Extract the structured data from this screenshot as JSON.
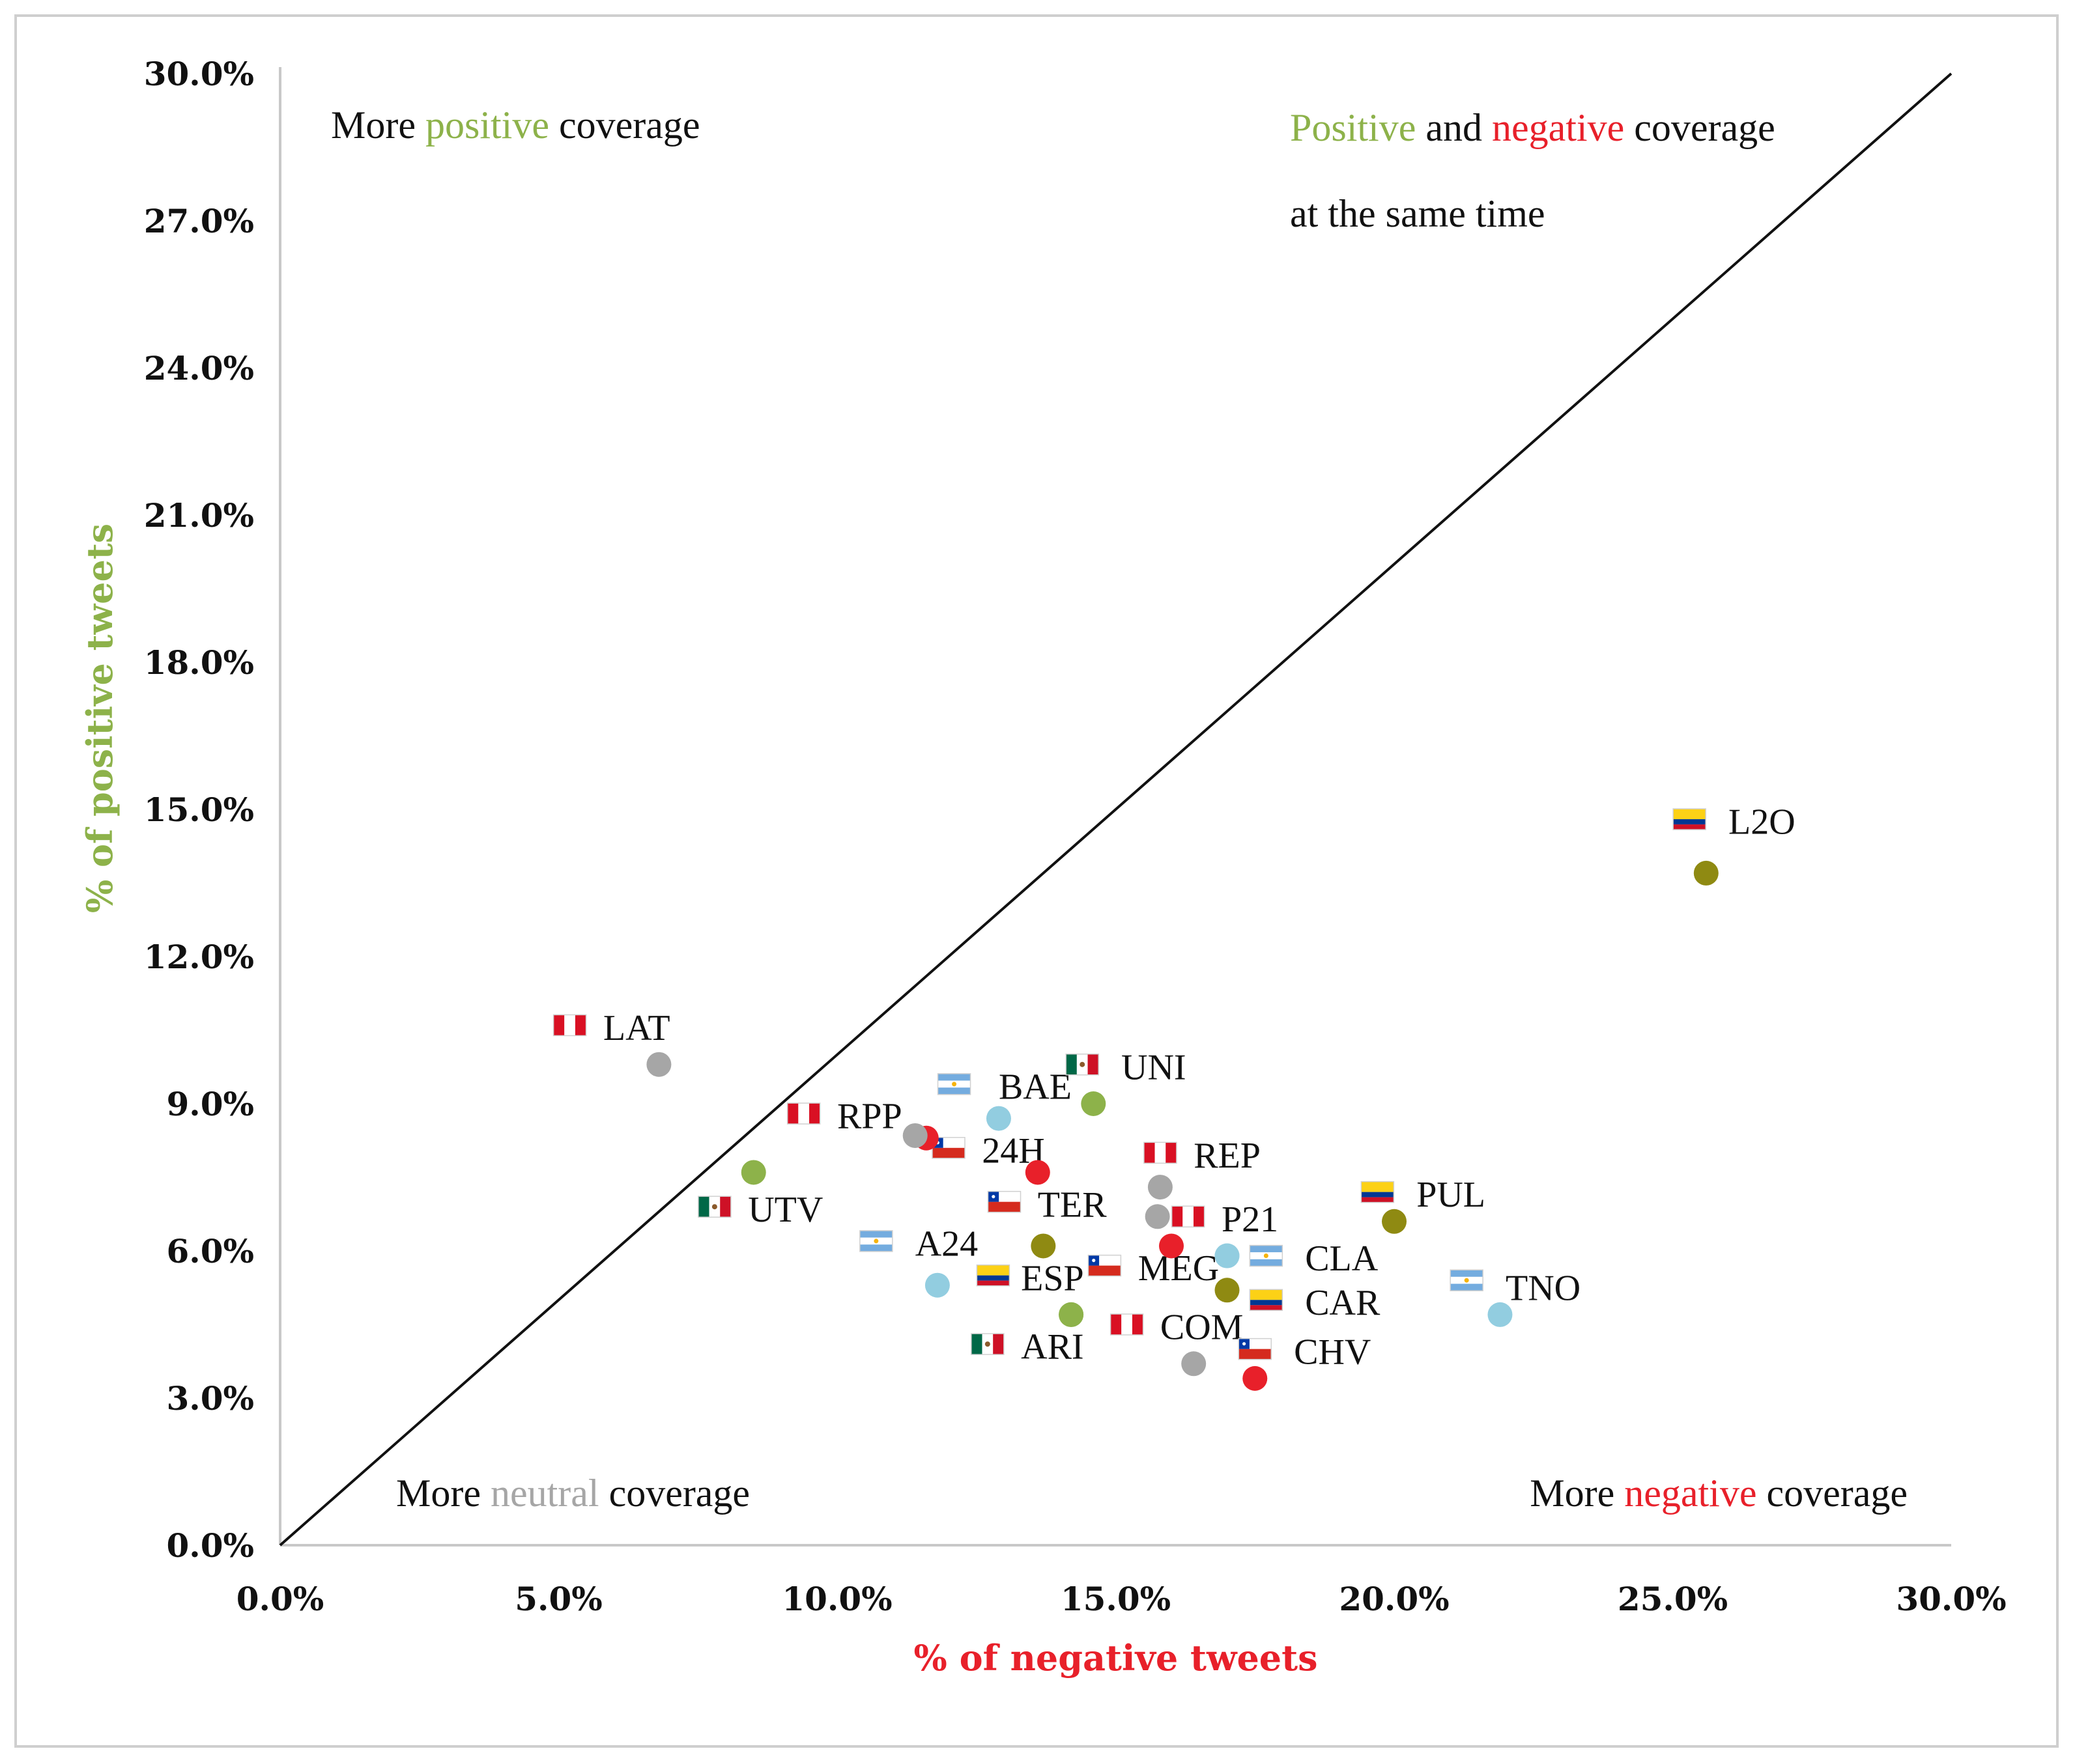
{
  "colors": {
    "positive": "#8db24a",
    "negative": "#e8202a",
    "neutral": "#a6a6a6",
    "both": "#8f8a12",
    "lightblue": "#92cde0"
  },
  "chart_data": {
    "type": "scatter",
    "xlabel": "% of negative tweets",
    "ylabel": "% of positive tweets",
    "xlim": [
      0,
      30
    ],
    "ylim": [
      0,
      30
    ],
    "x_ticks": [
      "0.0%",
      "5.0%",
      "10.0%",
      "15.0%",
      "20.0%",
      "25.0%",
      "30.0%"
    ],
    "y_ticks": [
      "0.0%",
      "3.0%",
      "6.0%",
      "9.0%",
      "12.0%",
      "15.0%",
      "18.0%",
      "21.0%",
      "24.0%",
      "27.0%",
      "30.0%"
    ],
    "reference_line": {
      "from": [
        0,
        0
      ],
      "to": [
        30,
        30
      ]
    },
    "annotations": {
      "top_left": {
        "pre": "More ",
        "word": "positive",
        "post": " coverage",
        "color": "positive"
      },
      "top_right_line1": {
        "word1": "Positive",
        "mid": " and ",
        "word2": "negative",
        "post": " coverage"
      },
      "top_right_line2": "at the same time",
      "bottom_left": {
        "pre": "More ",
        "word": "neutral",
        "post": " coverage",
        "color": "neutral"
      },
      "bottom_right": {
        "pre": "More ",
        "word": "negative",
        "post": " coverage",
        "color": "negative"
      }
    },
    "points": [
      {
        "label": "LAT",
        "x": 6.8,
        "y": 9.8,
        "color": "neutral",
        "flag": "peru"
      },
      {
        "label": "UTV",
        "x": 8.5,
        "y": 7.6,
        "color": "positive",
        "flag": "mexico"
      },
      {
        "label": "RPP",
        "x": 11.6,
        "y": 8.3,
        "color": "negative",
        "flag": "peru"
      },
      {
        "label": "RPP-2",
        "x": 11.4,
        "y": 8.35,
        "color": "neutral",
        "flag": "none"
      },
      {
        "label": "BAE",
        "x": 12.9,
        "y": 8.7,
        "color": "lightblue",
        "flag": "argentina"
      },
      {
        "label": "UNI",
        "x": 14.6,
        "y": 9.0,
        "color": "positive",
        "flag": "mexico"
      },
      {
        "label": "24H",
        "x": 13.6,
        "y": 7.6,
        "color": "negative",
        "flag": "chile"
      },
      {
        "label": "TER",
        "x": 13.7,
        "y": 6.1,
        "color": "both",
        "flag": "chile"
      },
      {
        "label": "A24",
        "x": 11.8,
        "y": 5.3,
        "color": "lightblue",
        "flag": "argentina"
      },
      {
        "label": "ESP",
        "x": 14.2,
        "y": 4.7,
        "color": "positive",
        "flag": "colombia"
      },
      {
        "label": "ARI",
        "x": 14.2,
        "y": 4.7,
        "color": "positive",
        "flag": "mexico"
      },
      {
        "label": "REP",
        "x": 15.8,
        "y": 7.3,
        "color": "neutral",
        "flag": "peru"
      },
      {
        "label": "REP-2",
        "x": 15.75,
        "y": 6.7,
        "color": "neutral",
        "flag": "none"
      },
      {
        "label": "P21",
        "x": 16.0,
        "y": 6.1,
        "color": "negative",
        "flag": "peru"
      },
      {
        "label": "MEG",
        "x": 17.0,
        "y": 5.9,
        "color": "lightblue",
        "flag": "chile"
      },
      {
        "label": "CLA",
        "x": 17.0,
        "y": 5.9,
        "color": "lightblue",
        "flag": "argentina"
      },
      {
        "label": "CAR",
        "x": 17.0,
        "y": 5.2,
        "color": "both",
        "flag": "colombia"
      },
      {
        "label": "COM",
        "x": 16.4,
        "y": 3.7,
        "color": "neutral",
        "flag": "peru"
      },
      {
        "label": "CHV",
        "x": 17.5,
        "y": 3.4,
        "color": "negative",
        "flag": "chile"
      },
      {
        "label": "PUL",
        "x": 20.0,
        "y": 6.6,
        "color": "both",
        "flag": "colombia"
      },
      {
        "label": "TNO",
        "x": 21.9,
        "y": 4.7,
        "color": "lightblue",
        "flag": "argentina"
      },
      {
        "label": "L2O",
        "x": 25.6,
        "y": 13.7,
        "color": "both",
        "flag": "colombia"
      }
    ],
    "label_placements": [
      {
        "label": "LAT",
        "lx": 5.8,
        "ly": 10.3,
        "fx": 5.2,
        "fy": 10.6
      },
      {
        "label": "UTV",
        "lx": 8.4,
        "ly": 6.6,
        "fx": 7.8,
        "fy": 6.9
      },
      {
        "label": "RPP",
        "lx": 10.0,
        "ly": 8.5,
        "fx": 9.4,
        "fy": 8.8
      },
      {
        "label": "BAE",
        "lx": 12.9,
        "ly": 9.1,
        "fx": 12.1,
        "fy": 9.4
      },
      {
        "label": "UNI",
        "lx": 15.1,
        "ly": 9.5,
        "fx": 14.4,
        "fy": 9.8
      },
      {
        "label": "24H",
        "lx": 12.6,
        "ly": 7.8,
        "fx": 12.0,
        "fy": 8.1
      },
      {
        "label": "TER",
        "lx": 13.6,
        "ly": 6.7,
        "fx": 13.0,
        "fy": 7.0
      },
      {
        "label": "A24",
        "lx": 11.4,
        "ly": 5.9,
        "fx": 10.7,
        "fy": 6.2
      },
      {
        "label": "ESP",
        "lx": 13.3,
        "ly": 5.2,
        "fx": 12.8,
        "fy": 5.5
      },
      {
        "label": "ARI",
        "lx": 13.3,
        "ly": 3.8,
        "fx": 12.7,
        "fy": 4.1
      },
      {
        "label": "REP",
        "lx": 16.4,
        "ly": 7.7,
        "fx": 15.8,
        "fy": 8.0
      },
      {
        "label": "P21",
        "lx": 16.9,
        "ly": 6.4,
        "fx": 16.3,
        "fy": 6.7
      },
      {
        "label": "MEG",
        "lx": 15.4,
        "ly": 5.4,
        "fx": 14.8,
        "fy": 5.7
      },
      {
        "label": "CLA",
        "lx": 18.4,
        "ly": 5.6,
        "fx": 17.7,
        "fy": 5.9
      },
      {
        "label": "CAR",
        "lx": 18.4,
        "ly": 4.7,
        "fx": 17.7,
        "fy": 5.0
      },
      {
        "label": "COM",
        "lx": 15.8,
        "ly": 4.2,
        "fx": 15.2,
        "fy": 4.5
      },
      {
        "label": "CHV",
        "lx": 18.2,
        "ly": 3.7,
        "fx": 17.5,
        "fy": 4.0
      },
      {
        "label": "PUL",
        "lx": 20.4,
        "ly": 6.9,
        "fx": 19.7,
        "fy": 7.2
      },
      {
        "label": "TNO",
        "lx": 22.0,
        "ly": 5.0,
        "fx": 21.3,
        "fy": 5.4
      },
      {
        "label": "L2O",
        "lx": 26.0,
        "ly": 14.5,
        "fx": 25.3,
        "fy": 14.8
      }
    ]
  }
}
